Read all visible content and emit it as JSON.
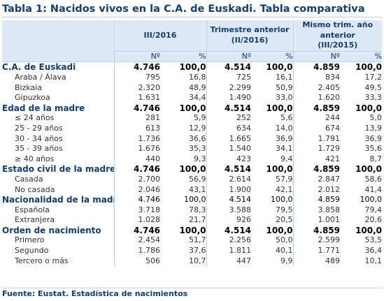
{
  "title": "Tabla 1: Nacidos vivos en la C.A. de Euskadi. Tabla comparativa",
  "columns": {
    "col1": "III/2016",
    "col2_line1": "Trimestre anterior",
    "col2_line2": "(II/2016)",
    "col3_line1": "Mismo trim. año",
    "col3_line2": "anterior",
    "col3_line3": "(III/2015)",
    "n_label": "Nº",
    "pct_label": "%"
  },
  "rows": [
    {
      "label": "C.A. de Euskadi",
      "type": "group",
      "v": [
        "4.746",
        "100,0",
        "4.514",
        "100,0",
        "4.859",
        "100,0"
      ]
    },
    {
      "label": "Araba / Álava",
      "type": "sub",
      "v": [
        "795",
        "16,8",
        "725",
        "16,1",
        "834",
        "17,2"
      ]
    },
    {
      "label": "Bizkaia",
      "type": "sub",
      "v": [
        "2.320",
        "48,9",
        "2.299",
        "50,9",
        "2.405",
        "49,5"
      ]
    },
    {
      "label": "Gipuzkoa",
      "type": "sub",
      "v": [
        "1.631",
        "34,4",
        "1.490",
        "33,0",
        "1.620",
        "33,3"
      ]
    },
    {
      "label": "Edad de la madre",
      "type": "group",
      "v": [
        "4.746",
        "100,0",
        "4.514",
        "100,0",
        "4.859",
        "100,0"
      ]
    },
    {
      "label": "≤ 24 años",
      "type": "sub",
      "v": [
        "281",
        "5,9",
        "252",
        "5,6",
        "244",
        "5,0"
      ]
    },
    {
      "label": "25 - 29 años",
      "type": "sub",
      "v": [
        "613",
        "12,9",
        "634",
        "14,0",
        "674",
        "13,9"
      ]
    },
    {
      "label": "30 - 34 años",
      "type": "sub",
      "v": [
        "1.736",
        "36,6",
        "1.665",
        "36,9",
        "1.791",
        "36,9"
      ]
    },
    {
      "label": "35 - 39 años",
      "type": "sub",
      "v": [
        "1.676",
        "35,3",
        "1.540",
        "34,1",
        "1.729",
        "35,6"
      ]
    },
    {
      "label": "≥ 40 años",
      "type": "sub",
      "v": [
        "440",
        "9,3",
        "423",
        "9,4",
        "421",
        "8,7"
      ]
    },
    {
      "label": "Estado civil de la madre",
      "type": "group",
      "v": [
        "4.746",
        "100,0",
        "4.514",
        "100,0",
        "4.859",
        "100,0"
      ]
    },
    {
      "label": "Casada",
      "type": "sub",
      "v": [
        "2.700",
        "56,9",
        "2.614",
        "57,9",
        "2.847",
        "58,6"
      ]
    },
    {
      "label": "No casada",
      "type": "sub",
      "v": [
        "2.046",
        "43,1",
        "1.900",
        "42,1",
        "2.012",
        "41,4"
      ]
    },
    {
      "label": "Nacionalidad de la madre",
      "type": "group-plain",
      "v": [
        "4.746",
        "100,0",
        "4.514",
        "100,0",
        "4.859",
        "100,0"
      ]
    },
    {
      "label": "Española",
      "type": "sub",
      "v": [
        "3.718",
        "78,3",
        "3.588",
        "79,5",
        "3.858",
        "79,4"
      ]
    },
    {
      "label": "Extranjera",
      "type": "sub",
      "v": [
        "1.028",
        "21,7",
        "926",
        "20,5",
        "1.001",
        "20,6"
      ]
    },
    {
      "label": "Orden de nacimiento",
      "type": "group",
      "v": [
        "4.746",
        "100,0",
        "4.514",
        "100,0",
        "4.859",
        "100,0"
      ]
    },
    {
      "label": "Primero",
      "type": "sub",
      "v": [
        "2.454",
        "51,7",
        "2.256",
        "50,0",
        "2.599",
        "53,5"
      ]
    },
    {
      "label": "Segundo",
      "type": "sub",
      "v": [
        "1.786",
        "37,6",
        "1.811",
        "40,1",
        "1.771",
        "36,4"
      ]
    },
    {
      "label": "Tercero o más",
      "type": "sub",
      "v": [
        "506",
        "10,7",
        "447",
        "9,9",
        "489",
        "10,1"
      ]
    }
  ],
  "footer": "Fuente: Eustat. Estadística de nacimientos",
  "colors": {
    "accent": "#153d6f",
    "header_bg": "#dde9f6",
    "rule": "#bcd1e8"
  }
}
